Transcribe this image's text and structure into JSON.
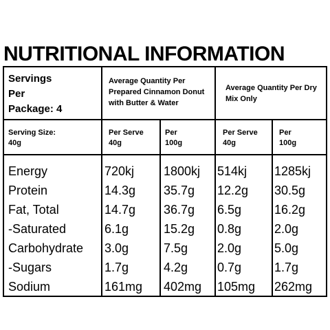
{
  "title": "NUTRITIONAL INFORMATION",
  "servings": {
    "line1": "Servings",
    "line2": "Per",
    "line3": "Package: 4",
    "size_label": "Serving Size:",
    "size_value": "40g"
  },
  "headers": {
    "prepared": "Average Quantity Per Prepared Cinnamon Donut with Butter  & Water",
    "dry": "Average Quantity Per Dry Mix Only"
  },
  "subheaders": [
    {
      "line1": "Per Serve",
      "line2": "40g"
    },
    {
      "line1": "Per",
      "line2": "100g"
    },
    {
      "line1": "Per Serve",
      "line2": "40g"
    },
    {
      "line1": "Per",
      "line2": "100g"
    }
  ],
  "rows": [
    {
      "nutrient": "Energy",
      "values": [
        "720kj",
        "1800kj",
        "514kj",
        "1285kj"
      ]
    },
    {
      "nutrient": "Protein",
      "values": [
        "14.3g",
        "35.7g",
        "12.2g",
        "30.5g"
      ]
    },
    {
      "nutrient": "Fat, Total",
      "values": [
        "14.7g",
        "36.7g",
        "6.5g",
        "16.2g"
      ]
    },
    {
      "nutrient": "-Saturated",
      "values": [
        "6.1g",
        "15.2g",
        "0.8g",
        "2.0g"
      ]
    },
    {
      "nutrient": "Carbohydrate",
      "values": [
        "3.0g",
        "7.5g",
        "2.0g",
        "5.0g"
      ]
    },
    {
      "nutrient": "-Sugars",
      "values": [
        "1.7g",
        "4.2g",
        "0.7g",
        "1.7g"
      ]
    },
    {
      "nutrient": "Sodium",
      "values": [
        "161mg",
        "402mg",
        "105mg",
        "262mg"
      ]
    }
  ]
}
